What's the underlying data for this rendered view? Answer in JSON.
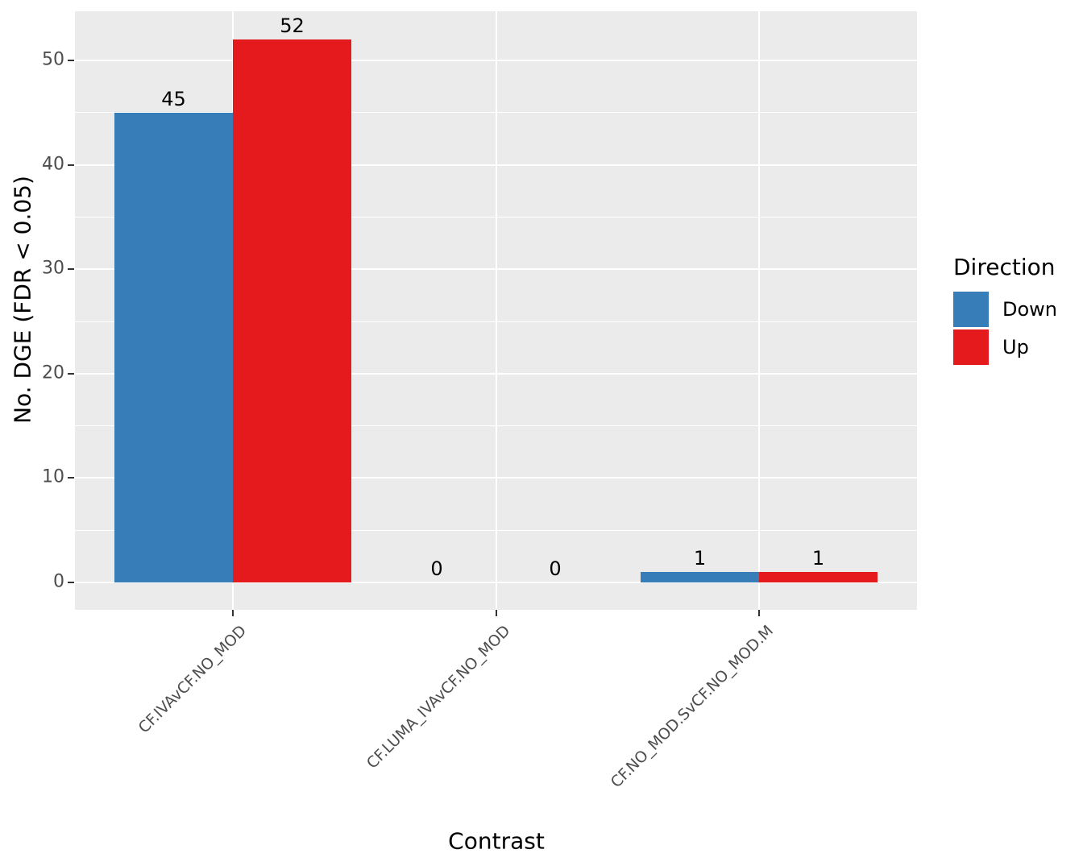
{
  "chart_data": {
    "type": "bar",
    "title": "",
    "xlabel": "Contrast",
    "ylabel": "No. DGE (FDR < 0.05)",
    "categories": [
      "CF.IVAvCF.NO_MOD",
      "CF.LUMA_IVAvCF.NO_MOD",
      "CF.NO_MOD.SvCF.NO_MOD.M"
    ],
    "series": [
      {
        "name": "Down",
        "color": "#377EB8",
        "values": [
          45,
          0,
          1
        ]
      },
      {
        "name": "Up",
        "color": "#E41A1C",
        "values": [
          52,
          0,
          1
        ]
      }
    ],
    "bar_value_labels": [
      [
        "45",
        "52"
      ],
      [
        "0",
        "0"
      ],
      [
        "1",
        "1"
      ]
    ],
    "legend_title": "Direction",
    "legend_position": "right",
    "ylim": [
      0,
      52
    ],
    "yticks": [
      "0",
      "10",
      "20",
      "30",
      "40",
      "50"
    ],
    "ytick_values": [
      0,
      10,
      20,
      30,
      40,
      50
    ],
    "yminor_values": [
      5,
      15,
      25,
      35,
      45
    ],
    "grid": "on",
    "panel_bg": "#EBEBEB",
    "grid_color": "#FFFFFF",
    "tick_color": "#333333",
    "tick_label_color": "#4D4D4D",
    "text_color": "#000000"
  }
}
